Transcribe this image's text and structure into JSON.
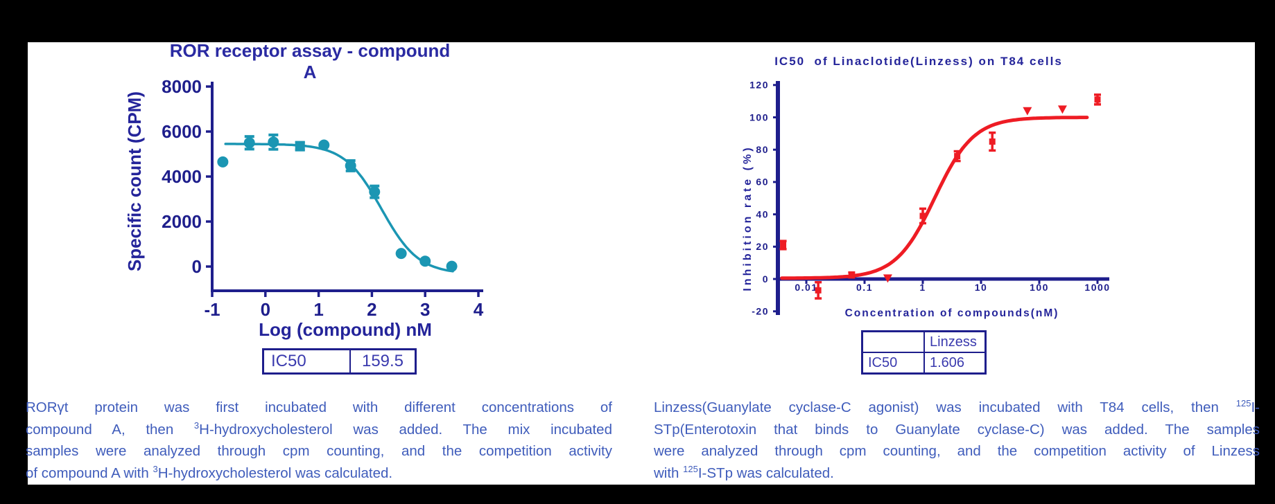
{
  "colors": {
    "background": "#000000",
    "panel": "#ffffff",
    "navy_axis": "#1e1e8c",
    "navy_text": "#24249a",
    "teal_series": "#1b96b3",
    "red_series": "#ee1c24",
    "caption_blue": "#3f5cbb",
    "table_text": "#3a3aae"
  },
  "charts": [
    {
      "id": "ror-assay",
      "title": "ROR receptor assay - compound A",
      "x_label": "Log (compound) nM",
      "y_label": "Specific count (CPM)",
      "chart_data": {
        "type": "scatter",
        "x_scale": "linear",
        "xlabel": "Log (compound) nM",
        "ylabel": "Specific count (CPM)",
        "xlim": [
          -1,
          4
        ],
        "ylim": [
          0,
          8000
        ],
        "x_ticks": [
          -1,
          0,
          1,
          2,
          3,
          4
        ],
        "y_ticks": [
          0,
          2000,
          4000,
          6000,
          8000
        ],
        "grid": false,
        "legend": "none",
        "points": [
          {
            "x": -0.8,
            "y": 4650,
            "marker": "circle"
          },
          {
            "x": -0.3,
            "y": 5500,
            "err": 280,
            "marker": "circle"
          },
          {
            "x": 0.15,
            "y": 5530,
            "err": 320,
            "marker": "circle"
          },
          {
            "x": 0.65,
            "y": 5350,
            "err": 170,
            "marker": "square"
          },
          {
            "x": 1.1,
            "y": 5400,
            "marker": "circle"
          },
          {
            "x": 1.6,
            "y": 4480,
            "err": 230,
            "marker": "circle"
          },
          {
            "x": 2.05,
            "y": 3320,
            "err": 260,
            "marker": "circle"
          },
          {
            "x": 2.55,
            "y": 580,
            "marker": "circle"
          },
          {
            "x": 3.0,
            "y": 240,
            "marker": "circle"
          },
          {
            "x": 3.5,
            "y": 10,
            "marker": "circle"
          }
        ],
        "fit_curve": {
          "top": 5450,
          "bottom": -330,
          "xmid": 2.18,
          "hill": 1.25,
          "from": -0.75,
          "to": 3.52,
          "increasing": false
        }
      },
      "result_table": {
        "rows": [
          [
            "IC50",
            "159.5"
          ]
        ]
      }
    },
    {
      "id": "linzess",
      "title": "IC50  of Linaclotide(Linzess) on T84 cells",
      "x_label": "Concentration of compounds(nM)",
      "y_label": "Inhibition rate (%)",
      "chart_data": {
        "type": "scatter",
        "x_scale": "log",
        "xlabel": "Concentration of compounds(nM)",
        "ylabel": "Inhibition rate (%)",
        "xlim": [
          0.01,
          1000
        ],
        "ylim": [
          -20,
          120
        ],
        "x_ticks": [
          {
            "v": 0.01,
            "label": "0.01"
          },
          {
            "v": 0.1,
            "label": "0.1"
          },
          {
            "v": 1,
            "label": "1"
          },
          {
            "v": 10,
            "label": "10"
          },
          {
            "v": 100,
            "label": "100"
          },
          {
            "v": 1000,
            "label": "1000"
          }
        ],
        "y_ticks": [
          -20,
          0,
          20,
          40,
          60,
          80,
          100,
          120
        ],
        "grid": false,
        "legend": "none",
        "points": [
          {
            "x": 0.004,
            "y": 21,
            "err": 2.5,
            "marker": "square"
          },
          {
            "x": 0.016,
            "y": -7,
            "err": 5,
            "marker": "square"
          },
          {
            "x": 0.06,
            "y": 2.5,
            "err": 1.5,
            "marker": "square"
          },
          {
            "x": 0.25,
            "y": 0.5,
            "marker": "triangle"
          },
          {
            "x": 1,
            "y": 39,
            "err": 4.5,
            "marker": "square"
          },
          {
            "x": 3.9,
            "y": 76,
            "err": 3,
            "marker": "square"
          },
          {
            "x": 15.6,
            "y": 85,
            "err": 5.5,
            "marker": "square"
          },
          {
            "x": 62.5,
            "y": 104,
            "marker": "triangle"
          },
          {
            "x": 250,
            "y": 105,
            "marker": "triangle"
          },
          {
            "x": 1000,
            "y": 111,
            "err": 3,
            "marker": "square"
          }
        ],
        "fit_curve": {
          "top": 100,
          "bottom": 0.5,
          "xmid": 0.206,
          "hill": 1.3,
          "from": -2.42,
          "to": 2.82,
          "increasing": true
        }
      },
      "result_table": {
        "rows": [
          [
            "",
            "Linzess"
          ],
          [
            "IC50",
            "1.606"
          ]
        ]
      }
    }
  ],
  "caption_left": {
    "l1": "RORγt protein was first incubated with different concentrations of",
    "l2a": "compound A, then ",
    "l2sup": "3",
    "l2b": "H-hydroxycholesterol was added. The mix incubated",
    "l3": "samples were analyzed through cpm counting, and the competition activity",
    "l4a": "of compound A with ",
    "l4sup": "3",
    "l4b": "H-hydroxycholesterol was calculated."
  },
  "caption_right": {
    "l1a": "Linzess(Guanylate cyclase-C agonist) was incubated with T84 cells, then ",
    "l1sup": "125",
    "l1b": "I-",
    "l2": "STp(Enterotoxin that binds to Guanylate cyclase-C) was added. The samples",
    "l3": "were analyzed through cpm counting, and the competition activity of Linzess",
    "l4a": "with ",
    "l4sup": "125",
    "l4b": "I-STp was calculated."
  }
}
